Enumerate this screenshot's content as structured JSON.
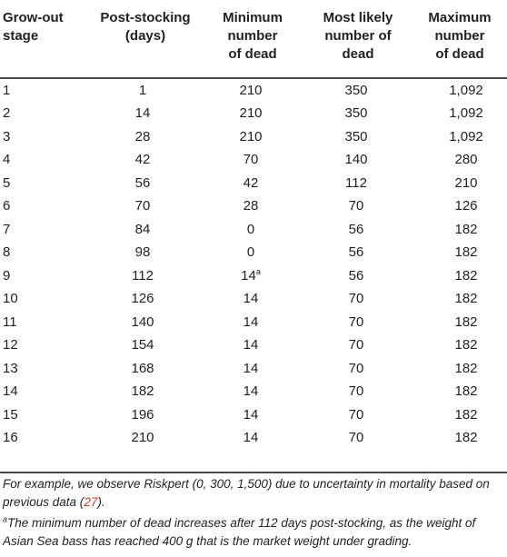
{
  "table": {
    "headers": [
      [
        "Grow-out",
        "stage"
      ],
      [
        "Post-stocking",
        "(days)"
      ],
      [
        "Minimum",
        "number",
        "of dead"
      ],
      [
        "Most likely",
        "number of",
        "dead"
      ],
      [
        "Maximum",
        "number",
        "of dead"
      ]
    ],
    "rows": [
      {
        "stage": "1",
        "days": "1",
        "min": "210",
        "min_mark": "",
        "likely": "350",
        "max": "1,092"
      },
      {
        "stage": "2",
        "days": "14",
        "min": "210",
        "min_mark": "",
        "likely": "350",
        "max": "1,092"
      },
      {
        "stage": "3",
        "days": "28",
        "min": "210",
        "min_mark": "",
        "likely": "350",
        "max": "1,092"
      },
      {
        "stage": "4",
        "days": "42",
        "min": "70",
        "min_mark": "",
        "likely": "140",
        "max": "280"
      },
      {
        "stage": "5",
        "days": "56",
        "min": "42",
        "min_mark": "",
        "likely": "112",
        "max": "210"
      },
      {
        "stage": "6",
        "days": "70",
        "min": "28",
        "min_mark": "",
        "likely": "70",
        "max": "126"
      },
      {
        "stage": "7",
        "days": "84",
        "min": "0",
        "min_mark": "",
        "likely": "56",
        "max": "182"
      },
      {
        "stage": "8",
        "days": "98",
        "min": "0",
        "min_mark": "",
        "likely": "56",
        "max": "182"
      },
      {
        "stage": "9",
        "days": "112",
        "min": "14",
        "min_mark": "a",
        "likely": "56",
        "max": "182"
      },
      {
        "stage": "10",
        "days": "126",
        "min": "14",
        "min_mark": "",
        "likely": "70",
        "max": "182"
      },
      {
        "stage": "11",
        "days": "140",
        "min": "14",
        "min_mark": "",
        "likely": "70",
        "max": "182"
      },
      {
        "stage": "12",
        "days": "154",
        "min": "14",
        "min_mark": "",
        "likely": "70",
        "max": "182"
      },
      {
        "stage": "13",
        "days": "168",
        "min": "14",
        "min_mark": "",
        "likely": "70",
        "max": "182"
      },
      {
        "stage": "14",
        "days": "182",
        "min": "14",
        "min_mark": "",
        "likely": "70",
        "max": "182"
      },
      {
        "stage": "15",
        "days": "196",
        "min": "14",
        "min_mark": "",
        "likely": "70",
        "max": "182"
      },
      {
        "stage": "16",
        "days": "210",
        "min": "14",
        "min_mark": "",
        "likely": "70",
        "max": "182"
      }
    ]
  },
  "notes": {
    "note1_before": "For example, we observe Riskpert (0, 300, 1,500) due to uncertainty in mortality based on previous data (",
    "note1_ref": "27",
    "note1_after": ").",
    "note2_mark": "a",
    "note2_text": "The minimum number of dead increases after 112 days post-stocking, as the weight of Asian Sea bass has reached 400 g that is the market weight under grading."
  },
  "colors": {
    "text": "#222222",
    "rule": "#4a4a4a",
    "reference_link": "#c0392b"
  }
}
